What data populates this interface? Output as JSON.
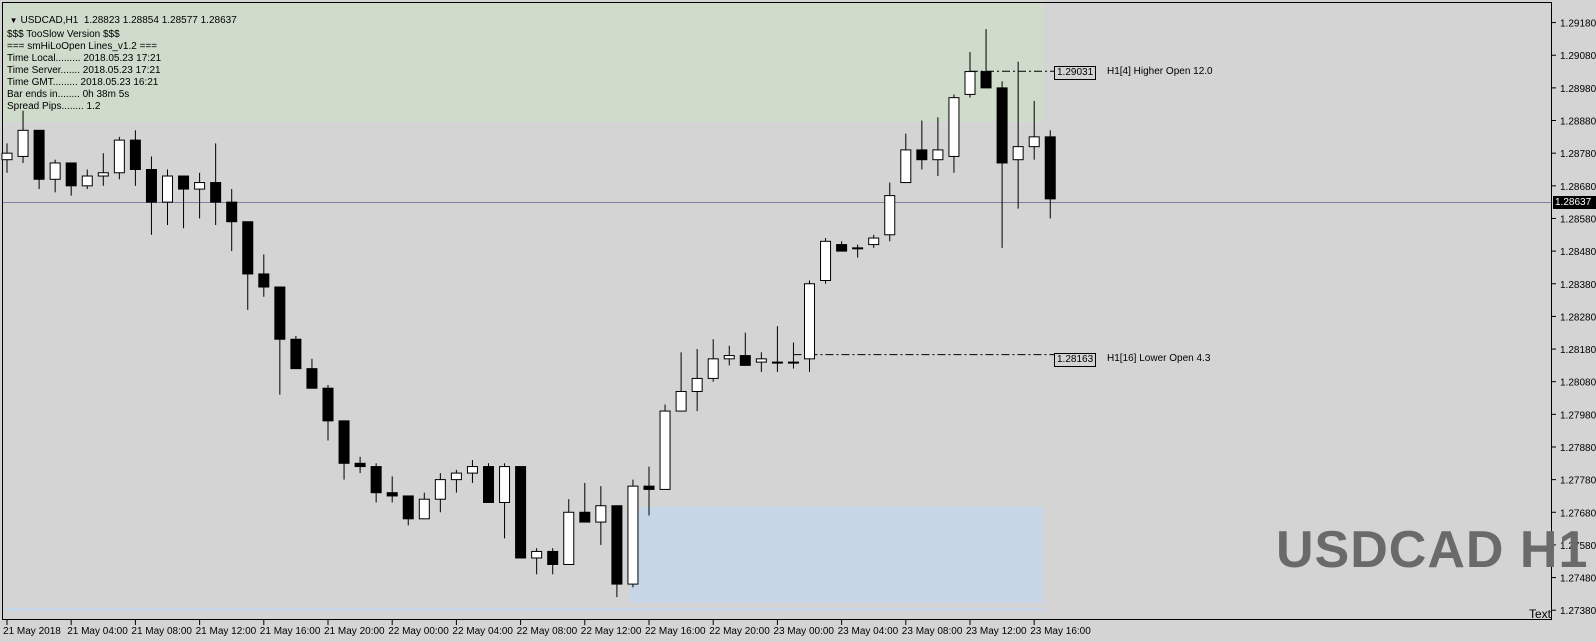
{
  "header": {
    "symbol": "USDCAD,H1",
    "ohlc": "1.28823 1.28854 1.28577 1.28637"
  },
  "info_lines": [
    "$$$ TooSlow Version $$$",
    "=== smHiLoOpen Lines_v1.2 ===",
    "Time Local......... 2018.05.23 17:21",
    "Time Server....... 2018.05.23 17:21",
    "Time GMT......... 2018.05.23 16:21",
    "Bar ends in........ 0h 38m 5s",
    "Spread Pips........ 1.2"
  ],
  "watermark": "USDCAD H1",
  "corner_label": "Text",
  "current_price": "1.28637",
  "levels": [
    {
      "box": "1.29031",
      "label": "H1[4] Higher Open 12.0"
    },
    {
      "box": "1.28163",
      "label": "H1[16] Lower Open 4.3"
    }
  ],
  "colors": {
    "background": "#d4d4d4",
    "upper_zone": "#cfdccc",
    "lower_zone": "#c6d6e6",
    "bull_candle": "#ffffff",
    "bear_candle": "#000000",
    "price_line": "#8080a0"
  },
  "chart_data": {
    "type": "candlestick",
    "title": "USDCAD,H1",
    "y_ticks": [
      "1.29180",
      "1.29080",
      "1.28980",
      "1.28880",
      "1.28780",
      "1.28680",
      "1.28580",
      "1.28480",
      "1.28380",
      "1.28280",
      "1.28180",
      "1.28080",
      "1.27980",
      "1.27880",
      "1.27780",
      "1.27680",
      "1.27580",
      "1.27480",
      "1.27380"
    ],
    "x_labels": [
      "21 May 2018",
      "21 May 04:00",
      "21 May 08:00",
      "21 May 12:00",
      "21 May 16:00",
      "21 May 20:00",
      "22 May 00:00",
      "22 May 04:00",
      "22 May 08:00",
      "22 May 12:00",
      "22 May 16:00",
      "22 May 20:00",
      "23 May 00:00",
      "23 May 04:00",
      "23 May 08:00",
      "23 May 12:00",
      "23 May 16:00"
    ],
    "ylim": [
      1.2735,
      1.2924
    ],
    "candles": [
      [
        1.2876,
        1.2881,
        1.2872,
        1.2878
      ],
      [
        1.2877,
        1.2891,
        1.2875,
        1.2885
      ],
      [
        1.2885,
        1.2885,
        1.2867,
        1.287
      ],
      [
        1.287,
        1.2876,
        1.2866,
        1.2875
      ],
      [
        1.2875,
        1.2875,
        1.2865,
        1.2868
      ],
      [
        1.2868,
        1.2873,
        1.2867,
        1.2871
      ],
      [
        1.2871,
        1.2878,
        1.2868,
        1.2872
      ],
      [
        1.2872,
        1.2883,
        1.287,
        1.2882
      ],
      [
        1.2882,
        1.2885,
        1.2868,
        1.2873
      ],
      [
        1.2873,
        1.2877,
        1.2853,
        1.2863
      ],
      [
        1.2863,
        1.2873,
        1.2856,
        1.2871
      ],
      [
        1.2871,
        1.2871,
        1.2855,
        1.2867
      ],
      [
        1.2867,
        1.2872,
        1.2858,
        1.2869
      ],
      [
        1.2869,
        1.2881,
        1.2856,
        1.2863
      ],
      [
        1.2863,
        1.2867,
        1.2848,
        1.2857
      ],
      [
        1.2857,
        1.2857,
        1.283,
        1.2841
      ],
      [
        1.2841,
        1.2847,
        1.2834,
        1.2837
      ],
      [
        1.2837,
        1.2837,
        1.2804,
        1.2821
      ],
      [
        1.2821,
        1.2822,
        1.2812,
        1.2812
      ],
      [
        1.2812,
        1.2815,
        1.2806,
        1.2806
      ],
      [
        1.2806,
        1.2807,
        1.279,
        1.2796
      ],
      [
        1.2796,
        1.2796,
        1.2778,
        1.2783
      ],
      [
        1.2783,
        1.2785,
        1.278,
        1.2782
      ],
      [
        1.2782,
        1.2783,
        1.2771,
        1.2774
      ],
      [
        1.2774,
        1.2779,
        1.2771,
        1.2773
      ],
      [
        1.2773,
        1.2773,
        1.2764,
        1.2766
      ],
      [
        1.2766,
        1.2774,
        1.2766,
        1.2772
      ],
      [
        1.2772,
        1.278,
        1.2768,
        1.2778
      ],
      [
        1.2778,
        1.2781,
        1.2774,
        1.278
      ],
      [
        1.278,
        1.2784,
        1.2777,
        1.2782
      ],
      [
        1.2782,
        1.2783,
        1.2772,
        1.2771
      ],
      [
        1.2771,
        1.2783,
        1.276,
        1.2782
      ],
      [
        1.2782,
        1.2782,
        1.2755,
        1.2754
      ],
      [
        1.2754,
        1.2757,
        1.2749,
        1.2756
      ],
      [
        1.2756,
        1.2757,
        1.2749,
        1.2752
      ],
      [
        1.2752,
        1.2772,
        1.2752,
        1.2768
      ],
      [
        1.2768,
        1.2777,
        1.2766,
        1.2765
      ],
      [
        1.2765,
        1.2776,
        1.2758,
        1.277
      ],
      [
        1.277,
        1.277,
        1.2742,
        1.2746
      ],
      [
        1.2746,
        1.2778,
        1.2745,
        1.2776
      ],
      [
        1.2776,
        1.2782,
        1.2767,
        1.2775
      ],
      [
        1.2775,
        1.2801,
        1.2775,
        1.2799
      ],
      [
        1.2799,
        1.2817,
        1.2799,
        1.2805
      ],
      [
        1.2805,
        1.2818,
        1.2799,
        1.2809
      ],
      [
        1.2809,
        1.2821,
        1.2808,
        1.2815
      ],
      [
        1.2815,
        1.2819,
        1.2813,
        1.2816
      ],
      [
        1.2816,
        1.2823,
        1.2813,
        1.2813
      ],
      [
        1.2814,
        1.2817,
        1.2811,
        1.2815
      ],
      [
        1.2814,
        1.2825,
        1.2811,
        1.2814
      ],
      [
        1.2814,
        1.282,
        1.2812,
        1.2814
      ],
      [
        1.2815,
        1.2839,
        1.2811,
        1.2838
      ],
      [
        1.2839,
        1.2852,
        1.2838,
        1.2851
      ],
      [
        1.285,
        1.2851,
        1.2848,
        1.2848
      ],
      [
        1.2849,
        1.285,
        1.2846,
        1.2849
      ],
      [
        1.285,
        1.2853,
        1.2849,
        1.2852
      ],
      [
        1.2853,
        1.2869,
        1.2851,
        1.2865
      ],
      [
        1.2869,
        1.2884,
        1.2869,
        1.2879
      ],
      [
        1.2879,
        1.2888,
        1.2873,
        1.2876
      ],
      [
        1.2876,
        1.2889,
        1.2871,
        1.2879
      ],
      [
        1.2877,
        1.2896,
        1.2872,
        1.2895
      ],
      [
        1.2896,
        1.2909,
        1.2895,
        1.2903
      ],
      [
        1.2903,
        1.2916,
        1.2898,
        1.2898
      ],
      [
        1.2898,
        1.29,
        1.2849,
        1.2875
      ],
      [
        1.2876,
        1.2906,
        1.2861,
        1.288
      ],
      [
        1.288,
        1.2894,
        1.2876,
        1.2883
      ],
      [
        1.2883,
        1.2885,
        1.2858,
        1.2864
      ]
    ]
  }
}
